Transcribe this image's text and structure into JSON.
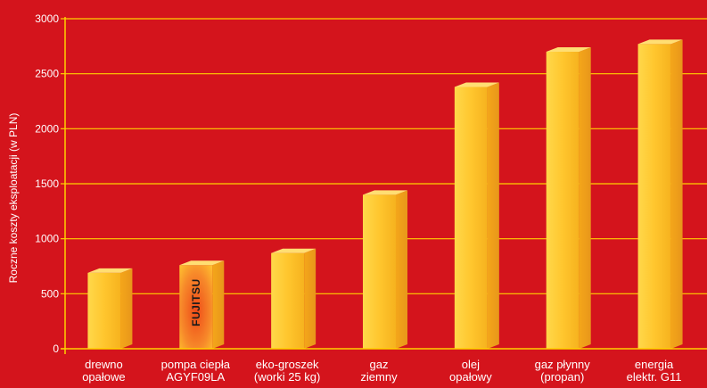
{
  "chart_data": {
    "type": "bar",
    "title": "",
    "xlabel": "",
    "ylabel": "Roczne koszty eksploatacji (w PLN)",
    "ylim": [
      0,
      3000
    ],
    "yticks": [
      0,
      500,
      1000,
      1500,
      2000,
      2500,
      3000
    ],
    "grid": true,
    "legend": "none",
    "categories": [
      [
        "drewno",
        "opałowe"
      ],
      [
        "pompa ciepła",
        "AGYF09LA"
      ],
      [
        "eko-groszek",
        "(worki 25 kg)"
      ],
      [
        "gaz",
        "ziemny"
      ],
      [
        "olej",
        "opałowy"
      ],
      [
        "gaz płynny",
        "(propan)"
      ],
      [
        "energia",
        "elektr. G11"
      ]
    ],
    "values": [
      690,
      760,
      870,
      1400,
      2380,
      2700,
      2770
    ],
    "highlight": {
      "index": 1,
      "brand_text": "FUJITSU"
    },
    "colors": {
      "background": "#d4141c",
      "axis": "#ffd200",
      "grid": "#ffd200",
      "bar_front": "#ffc630",
      "bar_side": "#f0a81e",
      "bar_top": "#ffde73",
      "highlight_front": "#f56a1c"
    }
  }
}
